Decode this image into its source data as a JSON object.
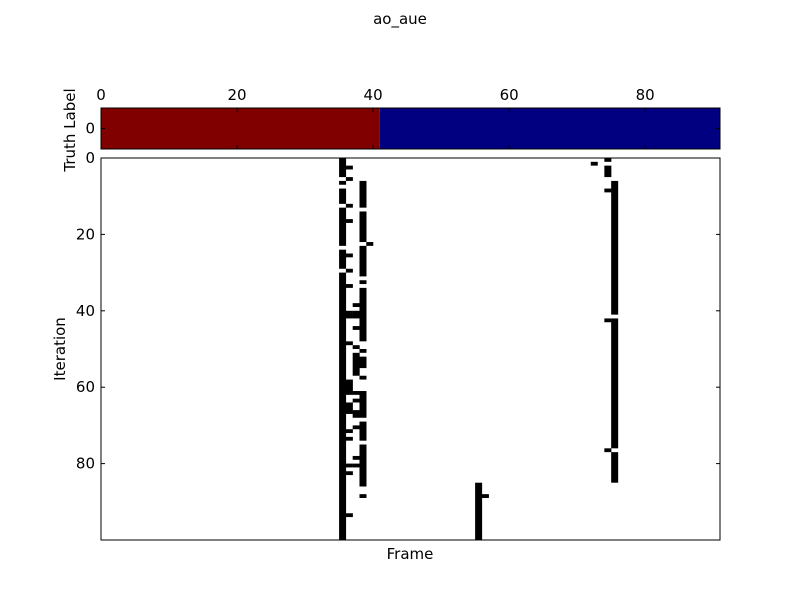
{
  "chart_data": [
    {
      "type": "heatmap",
      "title": "ao_aue",
      "ylabel": "Truth Label",
      "xlim": [
        0,
        90
      ],
      "ylim": [
        0,
        1
      ],
      "x_ticks": [
        0,
        20,
        40,
        60,
        80
      ],
      "y_ticks": [
        0
      ],
      "tick_position_x": "top",
      "grid": false,
      "segments": [
        {
          "x0": 0,
          "x1": 41,
          "value": 1,
          "color": "#800000"
        },
        {
          "x0": 41,
          "x1": 91,
          "value": 0,
          "color": "#000080"
        }
      ]
    },
    {
      "type": "heatmap",
      "xlabel": "Frame",
      "ylabel": "Iteration",
      "xlim": [
        0,
        90
      ],
      "ylim": [
        0,
        100
      ],
      "y_ticks": [
        0,
        20,
        40,
        60,
        80
      ],
      "grid": false,
      "colors": {
        "on": "#000000",
        "off": "#ffffff"
      },
      "on_cells": [
        {
          "frame": 35,
          "iterations": "0-4, 6, 8-11, 13-22, 24-28, 30-99"
        },
        {
          "frame": 36,
          "iterations": "2, 5, 12, 16, 25, 29, 33, 40-41, 48, 58-61, 64-66, 71, 73, 80, 82, 93"
        },
        {
          "frame": 37,
          "iterations": "38, 40-41, 44, 49, 51-56, 61, 63, 66-67, 70, 78, 80"
        },
        {
          "frame": 38,
          "iterations": "6-12, 14-21, 23-30, 32, 34-47, 50, 52-54, 57, 61-67, 69-73, 75-85, 88"
        },
        {
          "frame": 39,
          "iterations": "22"
        },
        {
          "frame": 55,
          "iterations": "85-99"
        },
        {
          "frame": 56,
          "iterations": "88"
        },
        {
          "frame": 72,
          "iterations": "1"
        },
        {
          "frame": 74,
          "iterations": "0, 2-4, 8, 42, 76"
        },
        {
          "frame": 75,
          "iterations": "6-40, 42-75, 77-84"
        }
      ]
    }
  ]
}
